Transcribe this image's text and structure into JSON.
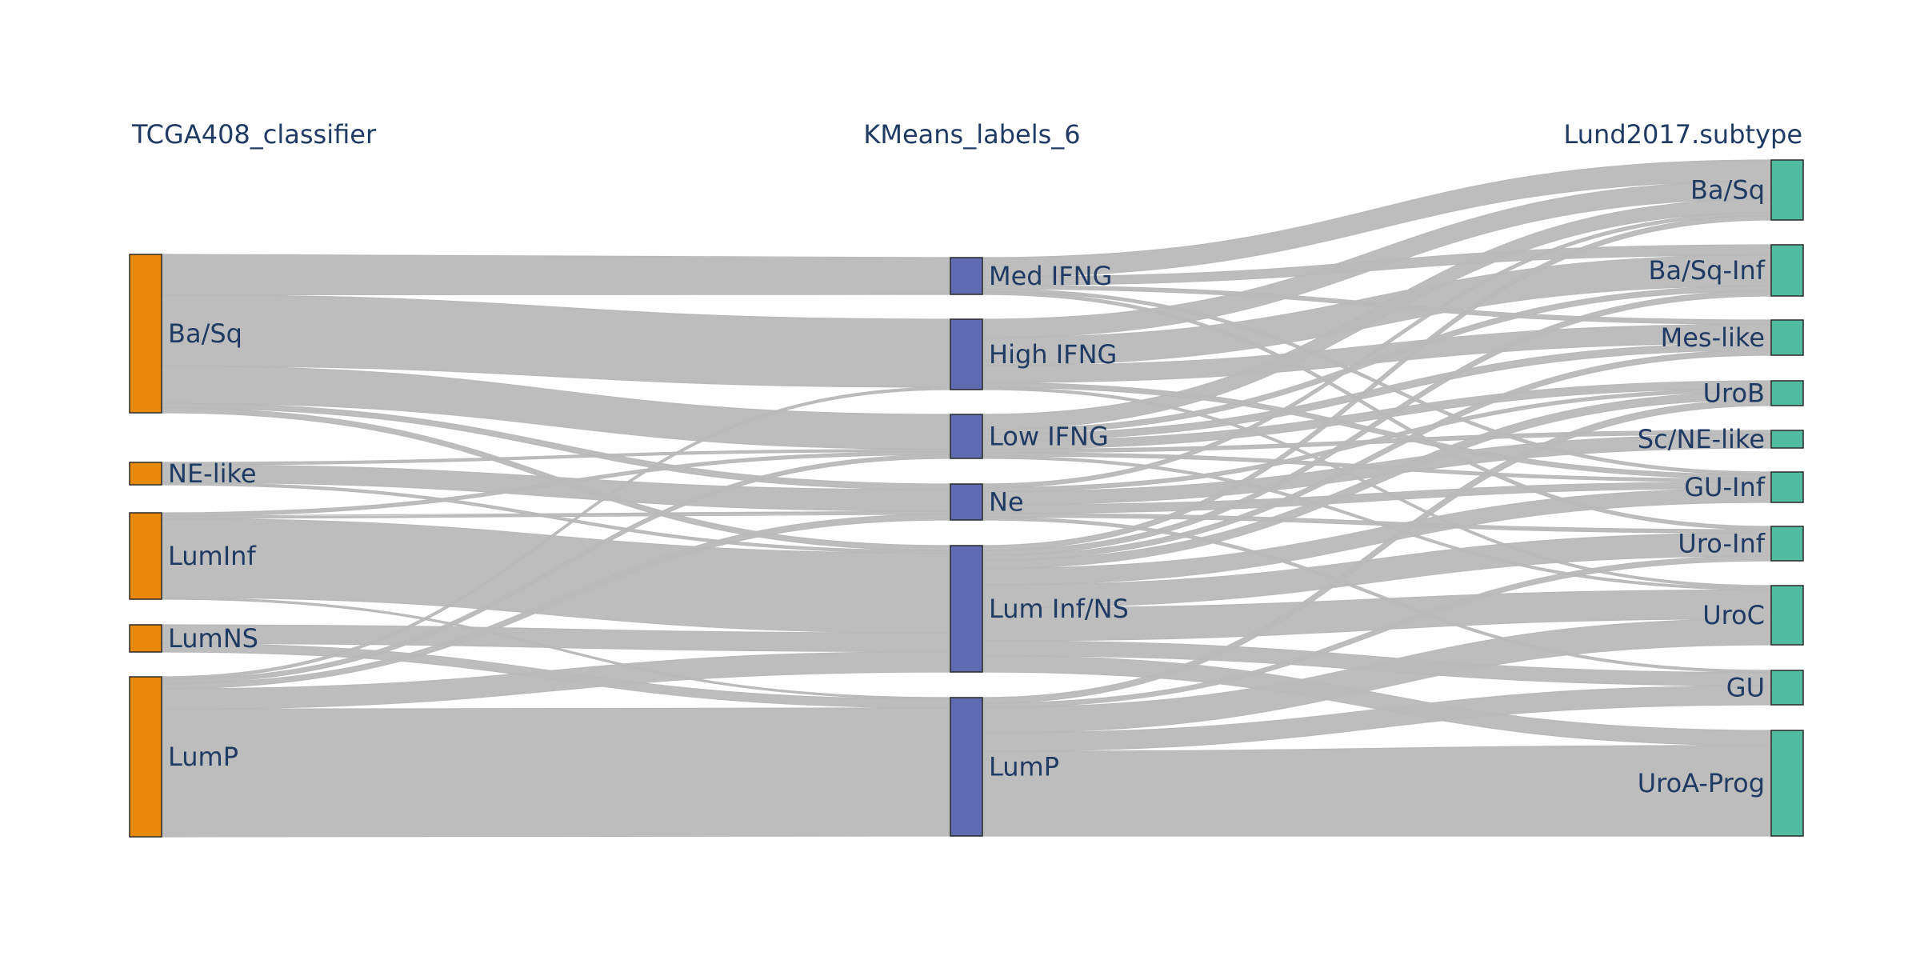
{
  "columns": [
    {
      "title": "TCGA408_classifier",
      "color": "#e8890c"
    },
    {
      "title": "KMeans_labels_6",
      "color": "#5e6bb0"
    },
    {
      "title": "Lund2017.subtype",
      "color": "#52bca0"
    }
  ],
  "nodes": {
    "tcga": [
      "Ba/Sq",
      "NE-like",
      "LumInf",
      "LumNS",
      "LumP"
    ],
    "kmeans": [
      "Med IFNG",
      "High IFNG",
      "Low IFNG",
      "Ne",
      "Lum Inf/NS",
      "LumP"
    ],
    "lund": [
      "Ba/Sq",
      "Ba/Sq-Inf",
      "Mes-like",
      "UroB",
      "Sc/NE-like",
      "GU-Inf",
      "Uro-Inf",
      "UroC",
      "GU",
      "UroA-Prog"
    ]
  },
  "link_color": "#b9b9b9",
  "links_left": [
    {
      "from": "Ba/Sq",
      "to": "Med IFNG",
      "value": 50
    },
    {
      "from": "Ba/Sq",
      "to": "High IFNG",
      "value": 88
    },
    {
      "from": "Ba/Sq",
      "to": "Low IFNG",
      "value": 46
    },
    {
      "from": "Ba/Sq",
      "to": "Ne",
      "value": 6
    },
    {
      "from": "Ba/Sq",
      "to": "Lum Inf/NS",
      "value": 6
    },
    {
      "from": "NE-like",
      "to": "Ne",
      "value": 22
    },
    {
      "from": "NE-like",
      "to": "Low IFNG",
      "value": 3
    },
    {
      "from": "NE-like",
      "to": "Lum Inf/NS",
      "value": 3
    },
    {
      "from": "LumInf",
      "to": "Lum Inf/NS",
      "value": 94
    },
    {
      "from": "LumInf",
      "to": "Low IFNG",
      "value": 4
    },
    {
      "from": "LumInf",
      "to": "Ne",
      "value": 3
    },
    {
      "from": "LumInf",
      "to": "LumP",
      "value": 2
    },
    {
      "from": "LumNS",
      "to": "Lum Inf/NS",
      "value": 22
    },
    {
      "from": "LumNS",
      "to": "LumP",
      "value": 10
    },
    {
      "from": "LumP",
      "to": "LumP",
      "value": 150
    },
    {
      "from": "LumP",
      "to": "Lum Inf/NS",
      "value": 24
    },
    {
      "from": "LumP",
      "to": "Ne",
      "value": 6
    },
    {
      "from": "LumP",
      "to": "Low IFNG",
      "value": 5
    },
    {
      "from": "LumP",
      "to": "High IFNG",
      "value": 3
    }
  ],
  "links_right": [
    {
      "from": "Med IFNG",
      "to": "Ba/Sq",
      "value": 28
    },
    {
      "from": "Med IFNG",
      "to": "Ba/Sq-Inf",
      "value": 12
    },
    {
      "from": "Med IFNG",
      "to": "Mes-like",
      "value": 5
    },
    {
      "from": "Med IFNG",
      "to": "GU-Inf",
      "value": 4
    },
    {
      "from": "Med IFNG",
      "to": "Uro-Inf",
      "value": 4
    },
    {
      "from": "High IFNG",
      "to": "Ba/Sq",
      "value": 24
    },
    {
      "from": "High IFNG",
      "to": "Ba/Sq-Inf",
      "value": 36
    },
    {
      "from": "High IFNG",
      "to": "Mes-like",
      "value": 22
    },
    {
      "from": "High IFNG",
      "to": "GU-Inf",
      "value": 6
    },
    {
      "from": "High IFNG",
      "to": "UroC",
      "value": 3
    },
    {
      "from": "Low IFNG",
      "to": "Ba/Sq",
      "value": 18
    },
    {
      "from": "Low IFNG",
      "to": "Ba/Sq-Inf",
      "value": 6
    },
    {
      "from": "Low IFNG",
      "to": "UroB",
      "value": 10
    },
    {
      "from": "Low IFNG",
      "to": "Mes-like",
      "value": 8
    },
    {
      "from": "Low IFNG",
      "to": "GU-Inf",
      "value": 4
    },
    {
      "from": "Low IFNG",
      "to": "Sc/NE-like",
      "value": 4
    },
    {
      "from": "Low IFNG",
      "to": "UroC",
      "value": 3
    },
    {
      "from": "Ne",
      "to": "Sc/NE-like",
      "value": 14
    },
    {
      "from": "Ne",
      "to": "Ba/Sq",
      "value": 4
    },
    {
      "from": "Ne",
      "to": "GU-Inf",
      "value": 9
    },
    {
      "from": "Ne",
      "to": "UroB",
      "value": 4
    },
    {
      "from": "Ne",
      "to": "Uro-Inf",
      "value": 4
    },
    {
      "from": "Ne",
      "to": "GU",
      "value": 3
    },
    {
      "from": "Lum Inf/NS",
      "to": "GU-Inf",
      "value": 20
    },
    {
      "from": "Lum Inf/NS",
      "to": "Uro-Inf",
      "value": 28
    },
    {
      "from": "Lum Inf/NS",
      "to": "UroC",
      "value": 40
    },
    {
      "from": "Lum Inf/NS",
      "to": "GU",
      "value": 18
    },
    {
      "from": "Lum Inf/NS",
      "to": "UroB",
      "value": 10
    },
    {
      "from": "Lum Inf/NS",
      "to": "Ba/Sq",
      "value": 6
    },
    {
      "from": "Lum Inf/NS",
      "to": "Ba/Sq-Inf",
      "value": 6
    },
    {
      "from": "Lum Inf/NS",
      "to": "Mes-like",
      "value": 6
    },
    {
      "from": "Lum Inf/NS",
      "to": "UroA-Prog",
      "value": 20
    },
    {
      "from": "LumP",
      "to": "UroA-Prog",
      "value": 120
    },
    {
      "from": "LumP",
      "to": "UroC",
      "value": 36
    },
    {
      "from": "LumP",
      "to": "GU",
      "value": 26
    },
    {
      "from": "LumP",
      "to": "UroB",
      "value": 8
    },
    {
      "from": "LumP",
      "to": "Uro-Inf",
      "value": 6
    }
  ]
}
